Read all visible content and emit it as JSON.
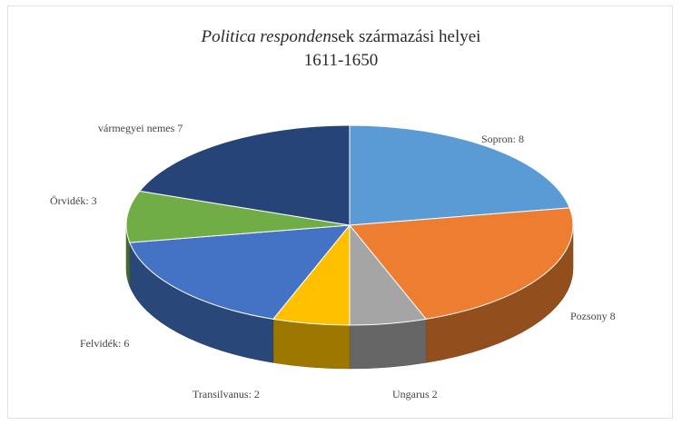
{
  "chart_data": {
    "type": "pie",
    "title_italic": "Politica responden",
    "title_rest": "sek származási helyei",
    "subtitle": "1611-1650",
    "legend": "none",
    "slices": [
      {
        "label": "Sopron: 8",
        "value": 8,
        "color": "#5b9bd5"
      },
      {
        "label": "Pozsony 8",
        "value": 8,
        "color": "#ed7d31"
      },
      {
        "label": "Ungarus 2",
        "value": 2,
        "color": "#a5a5a5"
      },
      {
        "label": "Transilvanus: 2",
        "value": 2,
        "color": "#ffc000"
      },
      {
        "label": "Felvidék: 6",
        "value": 6,
        "color": "#4472c4"
      },
      {
        "label": "Örvidék: 3",
        "value": 3,
        "color": "#70ad47"
      },
      {
        "label": "vármegyei nemes 7",
        "value": 7,
        "color": "#264478"
      }
    ]
  }
}
